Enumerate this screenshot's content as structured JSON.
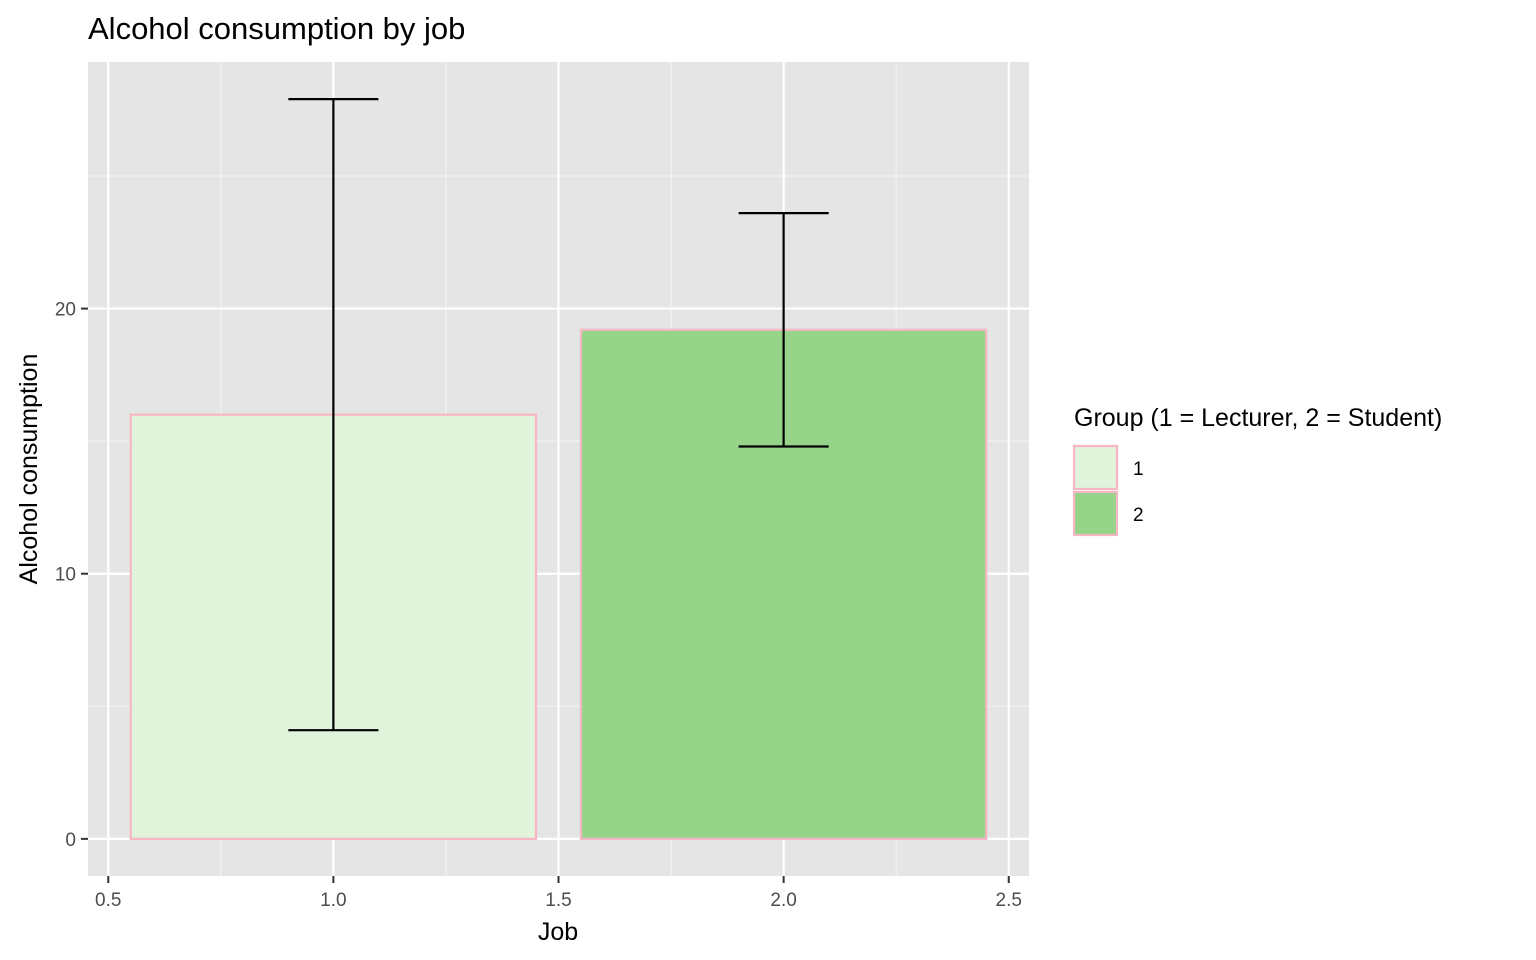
{
  "chart_data": {
    "type": "bar",
    "title": "Alcohol consumption by job",
    "xlabel": "Job",
    "ylabel": "Alcohol consumption",
    "xlim": [
      0.455,
      2.545
    ],
    "ylim": [
      -1.4,
      29.3
    ],
    "x_ticks": [
      0.5,
      1.0,
      1.5,
      2.0,
      2.5
    ],
    "x_tick_labels": [
      "0.5",
      "1.0",
      "1.5",
      "2.0",
      "2.5"
    ],
    "y_ticks": [
      0,
      10,
      20
    ],
    "y_tick_labels": [
      "0",
      "10",
      "20"
    ],
    "grid": true,
    "legend": {
      "title": "Group (1 = Lecturer, 2 = Student)",
      "placement": "right",
      "entries": [
        {
          "label": "1",
          "color": "#e0f3db"
        },
        {
          "label": "2",
          "color": "#95d489"
        }
      ]
    },
    "bar_border_color": "#f7b6c2",
    "panel_background": "#e5e5e5",
    "errorbar_color": "#000000",
    "series": [
      {
        "group": "1",
        "x": 1,
        "value": 16.0,
        "error_low": 4.1,
        "error_high": 27.9,
        "width": 0.9
      },
      {
        "group": "2",
        "x": 2,
        "value": 19.2,
        "error_low": 14.8,
        "error_high": 23.6,
        "width": 0.9
      }
    ]
  }
}
